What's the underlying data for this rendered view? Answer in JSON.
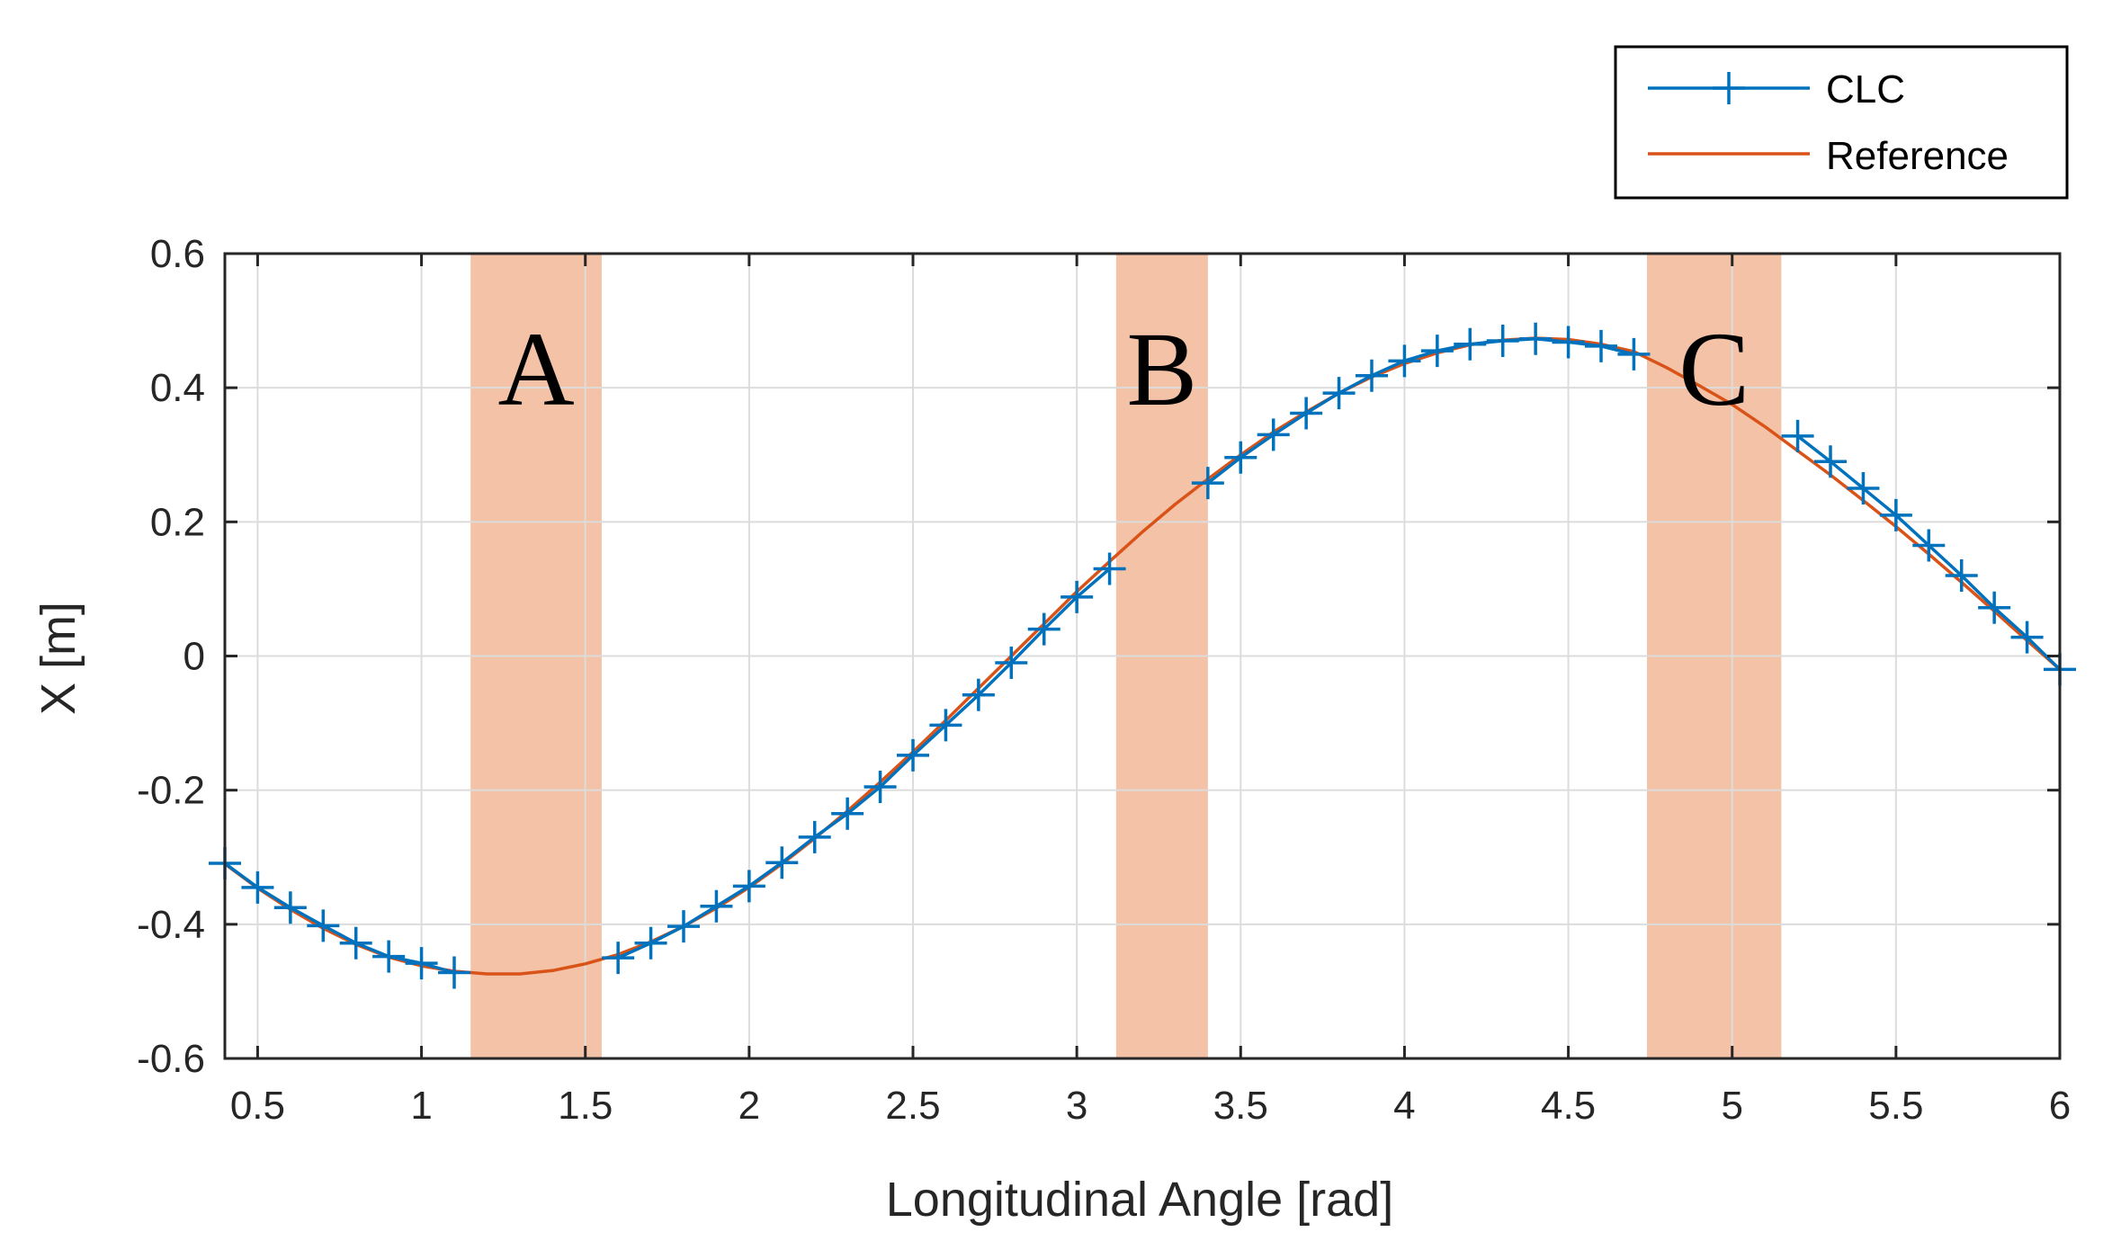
{
  "chart_data": {
    "type": "line",
    "title": "",
    "xlabel": "Longitudinal Angle [rad]",
    "ylabel": "X [m]",
    "xlim": [
      0.4,
      6.0
    ],
    "ylim": [
      -0.6,
      0.6
    ],
    "xticks": [
      0.5,
      1,
      1.5,
      2,
      2.5,
      3,
      3.5,
      4,
      4.5,
      5,
      5.5,
      6
    ],
    "xtick_labels": [
      "0.5",
      "1",
      "1.5",
      "2",
      "2.5",
      "3",
      "3.5",
      "4",
      "4.5",
      "5",
      "5.5",
      "6"
    ],
    "yticks": [
      -0.6,
      -0.4,
      -0.2,
      0,
      0.2,
      0.4,
      0.6
    ],
    "ytick_labels": [
      "-0.6",
      "-0.4",
      "-0.2",
      "0",
      "0.2",
      "0.4",
      "0.6"
    ],
    "grid": true,
    "legend_position": "top-right, outside plot",
    "colors": {
      "clc": "#0072BD",
      "reference": "#D95319",
      "region_fill": "#F4C2A6",
      "grid": "#DCDCDC",
      "axis": "#262626"
    },
    "regions": [
      {
        "label": "A",
        "x_start": 1.15,
        "x_end": 1.55
      },
      {
        "label": "B",
        "x_start": 3.12,
        "x_end": 3.4
      },
      {
        "label": "C",
        "x_start": 4.74,
        "x_end": 5.15
      }
    ],
    "series": [
      {
        "name": "CLC",
        "marker": "+",
        "segments": [
          {
            "x": [
              0.4,
              0.5,
              0.6,
              0.7,
              0.8,
              0.9,
              1.0,
              1.1
            ],
            "y": [
              -0.309,
              -0.345,
              -0.375,
              -0.402,
              -0.428,
              -0.448,
              -0.458,
              -0.472
            ]
          },
          {
            "x": [
              1.6,
              1.7,
              1.8,
              1.9,
              2.0,
              2.1,
              2.2,
              2.3,
              2.4,
              2.5,
              2.6,
              2.7,
              2.8,
              2.9,
              3.0,
              3.1
            ],
            "y": [
              -0.45,
              -0.428,
              -0.403,
              -0.373,
              -0.343,
              -0.308,
              -0.27,
              -0.235,
              -0.195,
              -0.148,
              -0.103,
              -0.058,
              -0.01,
              0.04,
              0.088,
              0.13
            ]
          },
          {
            "x": [
              3.4,
              3.5,
              3.6,
              3.7,
              3.8,
              3.9,
              4.0,
              4.1,
              4.2,
              4.3,
              4.4,
              4.5,
              4.6,
              4.7
            ],
            "y": [
              0.258,
              0.296,
              0.33,
              0.362,
              0.392,
              0.418,
              0.44,
              0.455,
              0.465,
              0.47,
              0.473,
              0.468,
              0.462,
              0.45
            ]
          },
          {
            "x": [
              5.2,
              5.3,
              5.4,
              5.5,
              5.6,
              5.7,
              5.8,
              5.9,
              6.0
            ],
            "y": [
              0.328,
              0.29,
              0.25,
              0.21,
              0.165,
              0.12,
              0.072,
              0.028,
              -0.02
            ]
          }
        ]
      },
      {
        "name": "Reference",
        "x": [
          0.4,
          0.5,
          0.6,
          0.7,
          0.8,
          0.9,
          1.0,
          1.1,
          1.2,
          1.3,
          1.4,
          1.5,
          1.6,
          1.7,
          1.8,
          1.9,
          2.0,
          2.1,
          2.2,
          2.3,
          2.4,
          2.5,
          2.6,
          2.7,
          2.8,
          2.9,
          3.0,
          3.1,
          3.2,
          3.3,
          3.4,
          3.5,
          3.6,
          3.7,
          3.8,
          3.9,
          4.0,
          4.1,
          4.2,
          4.3,
          4.4,
          4.5,
          4.6,
          4.7,
          4.8,
          4.9,
          5.0,
          5.1,
          5.2,
          5.3,
          5.4,
          5.5,
          5.6,
          5.7,
          5.8,
          5.9,
          6.0
        ],
        "y": [
          -0.31,
          -0.346,
          -0.378,
          -0.406,
          -0.43,
          -0.449,
          -0.462,
          -0.47,
          -0.474,
          -0.474,
          -0.469,
          -0.459,
          -0.445,
          -0.426,
          -0.403,
          -0.376,
          -0.345,
          -0.31,
          -0.272,
          -0.231,
          -0.188,
          -0.143,
          -0.096,
          -0.048,
          0.0,
          0.048,
          0.096,
          0.141,
          0.185,
          0.226,
          0.264,
          0.3,
          0.334,
          0.364,
          0.392,
          0.416,
          0.436,
          0.452,
          0.464,
          0.471,
          0.474,
          0.472,
          0.465,
          0.454,
          0.43,
          0.403,
          0.375,
          0.342,
          0.306,
          0.27,
          0.232,
          0.193,
          0.152,
          0.11,
          0.067,
          0.023,
          -0.02
        ]
      }
    ]
  }
}
